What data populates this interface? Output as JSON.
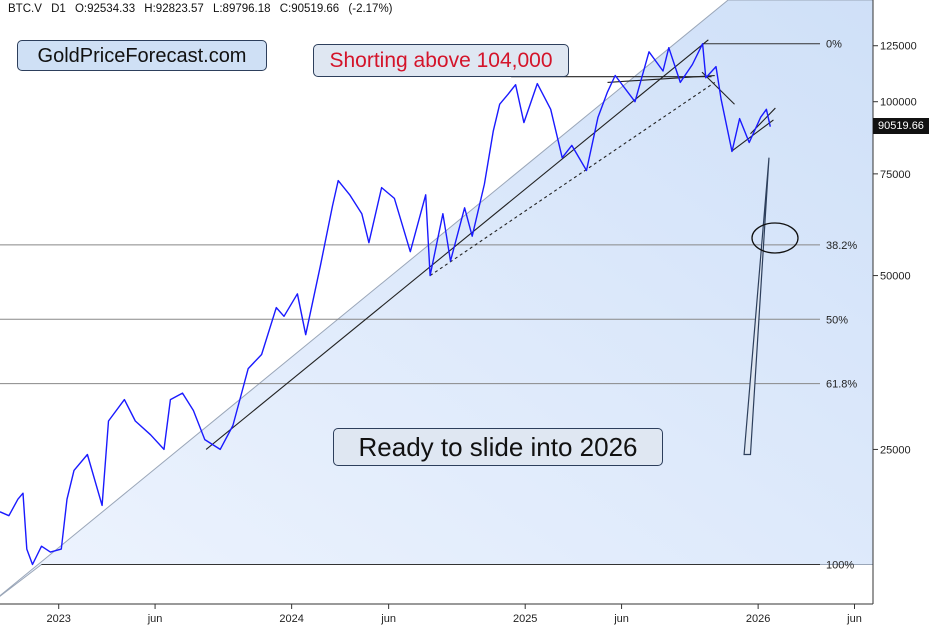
{
  "header": {
    "symbol": "BTC.V",
    "interval": "D1",
    "open": "O:92534.33",
    "high": "H:92823.57",
    "low": "L:89796.18",
    "close": "C:90519.66",
    "change": "(-2.17%)"
  },
  "logo_text": "GoldPriceForecast.com",
  "annotations": {
    "shorting": "Shorting above 104,000",
    "slide": "Ready to slide into 2026"
  },
  "last_price_label": "90519.66",
  "colors": {
    "price_line": "#1a1aff",
    "shade": "#dce8fb",
    "annotation_red": "#d4142a",
    "callout_bg": "#dfe7f2",
    "text": "#111111"
  },
  "chart_data": {
    "type": "line",
    "title": "",
    "xlabel": "",
    "ylabel": "",
    "y_scale": "log",
    "ylim": [
      13500,
      150000
    ],
    "xlim": [
      "2022-10-01",
      "2026-06-30"
    ],
    "grid": false,
    "y_ticks": [
      {
        "value": 125000,
        "label": "125000"
      },
      {
        "value": 100000,
        "label": "100000"
      },
      {
        "value": 75000,
        "label": "75000"
      },
      {
        "value": 50000,
        "label": "50000"
      },
      {
        "value": 25000,
        "label": "25000"
      }
    ],
    "x_ticks": [
      {
        "date": "2023-01-01",
        "label": "2023"
      },
      {
        "date": "2023-06-01",
        "label": "jun"
      },
      {
        "date": "2024-01-01",
        "label": "2024"
      },
      {
        "date": "2024-06-01",
        "label": "jun"
      },
      {
        "date": "2025-01-01",
        "label": "2025"
      },
      {
        "date": "2025-06-01",
        "label": "jun"
      },
      {
        "date": "2026-01-01",
        "label": "2026"
      },
      {
        "date": "2026-06-01",
        "label": "jun"
      }
    ],
    "fib_levels": [
      {
        "label": "0%",
        "value": 126000
      },
      {
        "label": "38.2%",
        "value": 56500
      },
      {
        "label": "50%",
        "value": 42000
      },
      {
        "label": "61.8%",
        "value": 32500
      },
      {
        "label": "100%",
        "value": 15800
      }
    ],
    "last_price": 90519.66,
    "series": [
      {
        "values": [
          [
            "2022-10-01",
            19500
          ],
          [
            "2022-10-15",
            19200
          ],
          [
            "2022-10-29",
            20500
          ],
          [
            "2022-11-06",
            21000
          ],
          [
            "2022-11-12",
            16800
          ],
          [
            "2022-11-21",
            15800
          ],
          [
            "2022-12-05",
            17000
          ],
          [
            "2022-12-19",
            16600
          ],
          [
            "2023-01-05",
            16800
          ],
          [
            "2023-01-14",
            20500
          ],
          [
            "2023-01-25",
            23000
          ],
          [
            "2023-02-15",
            24500
          ],
          [
            "2023-03-10",
            20000
          ],
          [
            "2023-03-20",
            28000
          ],
          [
            "2023-04-14",
            30500
          ],
          [
            "2023-05-01",
            28000
          ],
          [
            "2023-05-25",
            26500
          ],
          [
            "2023-06-15",
            25000
          ],
          [
            "2023-06-25",
            30500
          ],
          [
            "2023-07-14",
            31300
          ],
          [
            "2023-07-31",
            29200
          ],
          [
            "2023-08-18",
            26000
          ],
          [
            "2023-09-11",
            25000
          ],
          [
            "2023-10-01",
            27500
          ],
          [
            "2023-10-25",
            34500
          ],
          [
            "2023-11-15",
            36500
          ],
          [
            "2023-12-08",
            44000
          ],
          [
            "2023-12-20",
            42500
          ],
          [
            "2024-01-10",
            46500
          ],
          [
            "2024-01-23",
            39500
          ],
          [
            "2024-02-15",
            52000
          ],
          [
            "2024-03-05",
            66000
          ],
          [
            "2024-03-14",
            73000
          ],
          [
            "2024-04-01",
            69000
          ],
          [
            "2024-04-20",
            64000
          ],
          [
            "2024-05-01",
            57000
          ],
          [
            "2024-05-21",
            71000
          ],
          [
            "2024-06-10",
            68000
          ],
          [
            "2024-07-05",
            55000
          ],
          [
            "2024-07-29",
            69000
          ],
          [
            "2024-08-05",
            50000
          ],
          [
            "2024-08-25",
            64000
          ],
          [
            "2024-09-06",
            53000
          ],
          [
            "2024-09-28",
            65500
          ],
          [
            "2024-10-10",
            58500
          ],
          [
            "2024-10-29",
            72000
          ],
          [
            "2024-11-12",
            89000
          ],
          [
            "2024-11-22",
            99000
          ],
          [
            "2024-12-05",
            103000
          ],
          [
            "2024-12-17",
            107000
          ],
          [
            "2024-12-30",
            92000
          ],
          [
            "2025-01-20",
            107500
          ],
          [
            "2025-02-10",
            97000
          ],
          [
            "2025-02-28",
            80000
          ],
          [
            "2025-03-15",
            84000
          ],
          [
            "2025-04-07",
            76000
          ],
          [
            "2025-04-25",
            94000
          ],
          [
            "2025-05-10",
            104000
          ],
          [
            "2025-05-22",
            111000
          ],
          [
            "2025-06-22",
            100000
          ],
          [
            "2025-07-14",
            122000
          ],
          [
            "2025-08-05",
            113000
          ],
          [
            "2025-08-14",
            124000
          ],
          [
            "2025-09-01",
            108000
          ],
          [
            "2025-09-20",
            116000
          ],
          [
            "2025-10-06",
            126000
          ],
          [
            "2025-10-11",
            110000
          ],
          [
            "2025-10-27",
            115000
          ],
          [
            "2025-11-04",
            101000
          ],
          [
            "2025-11-21",
            82000
          ],
          [
            "2025-12-03",
            93500
          ],
          [
            "2025-12-18",
            85000
          ],
          [
            "2026-01-05",
            94000
          ],
          [
            "2026-01-14",
            97000
          ],
          [
            "2026-01-20",
            90520
          ]
        ]
      }
    ]
  }
}
